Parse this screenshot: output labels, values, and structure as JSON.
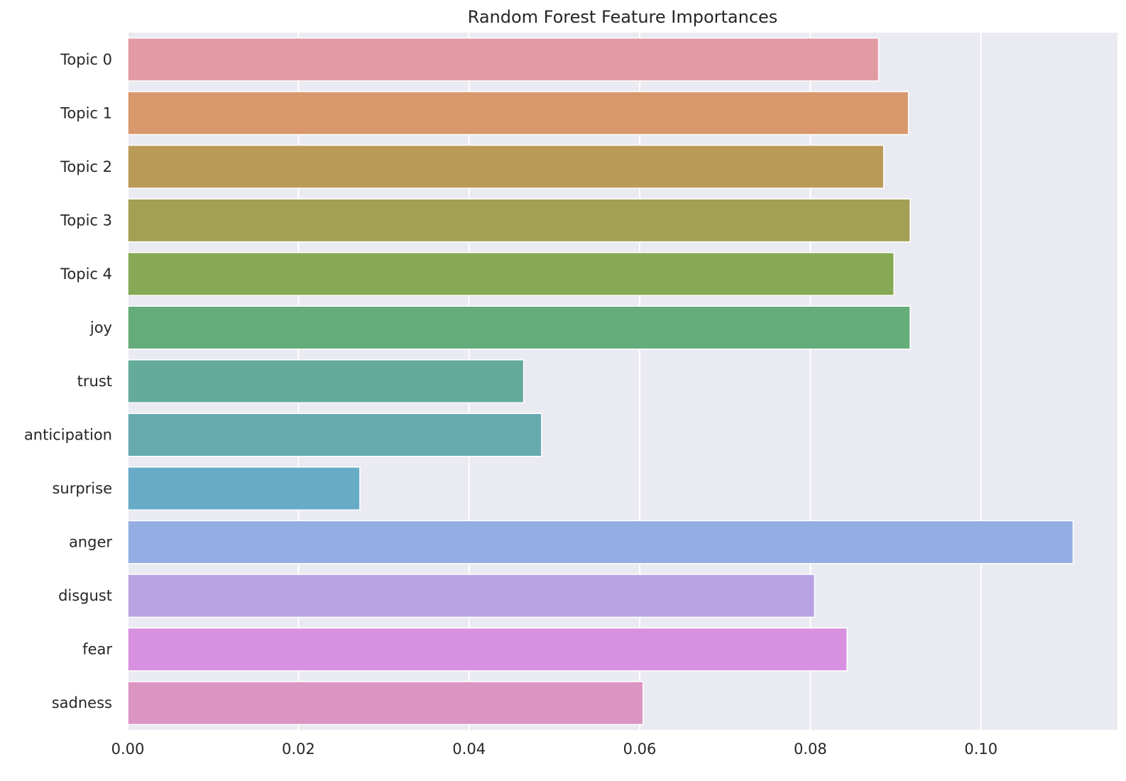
{
  "chart_data": {
    "type": "bar",
    "orientation": "horizontal",
    "title": "Random Forest Feature Importances",
    "xlabel": "",
    "ylabel": "",
    "xlim": [
      0,
      0.116
    ],
    "xticks": [
      0.0,
      0.02,
      0.04,
      0.06,
      0.08,
      0.1
    ],
    "xtick_labels": [
      "0.00",
      "0.02",
      "0.04",
      "0.06",
      "0.08",
      "0.10"
    ],
    "grid": true,
    "categories": [
      "Topic 0",
      "Topic 1",
      "Topic 2",
      "Topic 3",
      "Topic 4",
      "joy",
      "trust",
      "anticipation",
      "surprise",
      "anger",
      "disgust",
      "fear",
      "sadness"
    ],
    "values": [
      0.088,
      0.0915,
      0.0886,
      0.0917,
      0.0898,
      0.0917,
      0.0464,
      0.0485,
      0.0272,
      0.1108,
      0.0805,
      0.0843,
      0.0604
    ],
    "colors": [
      "#e29aa3",
      "#d9976c",
      "#b99a57",
      "#a1a053",
      "#87a956",
      "#65ac7a",
      "#64ab9a",
      "#66aab0",
      "#67abc7",
      "#94aee4",
      "#b9a3e3",
      "#d890e0",
      "#dc95c2"
    ],
    "background_color": "#eaeaf2"
  }
}
